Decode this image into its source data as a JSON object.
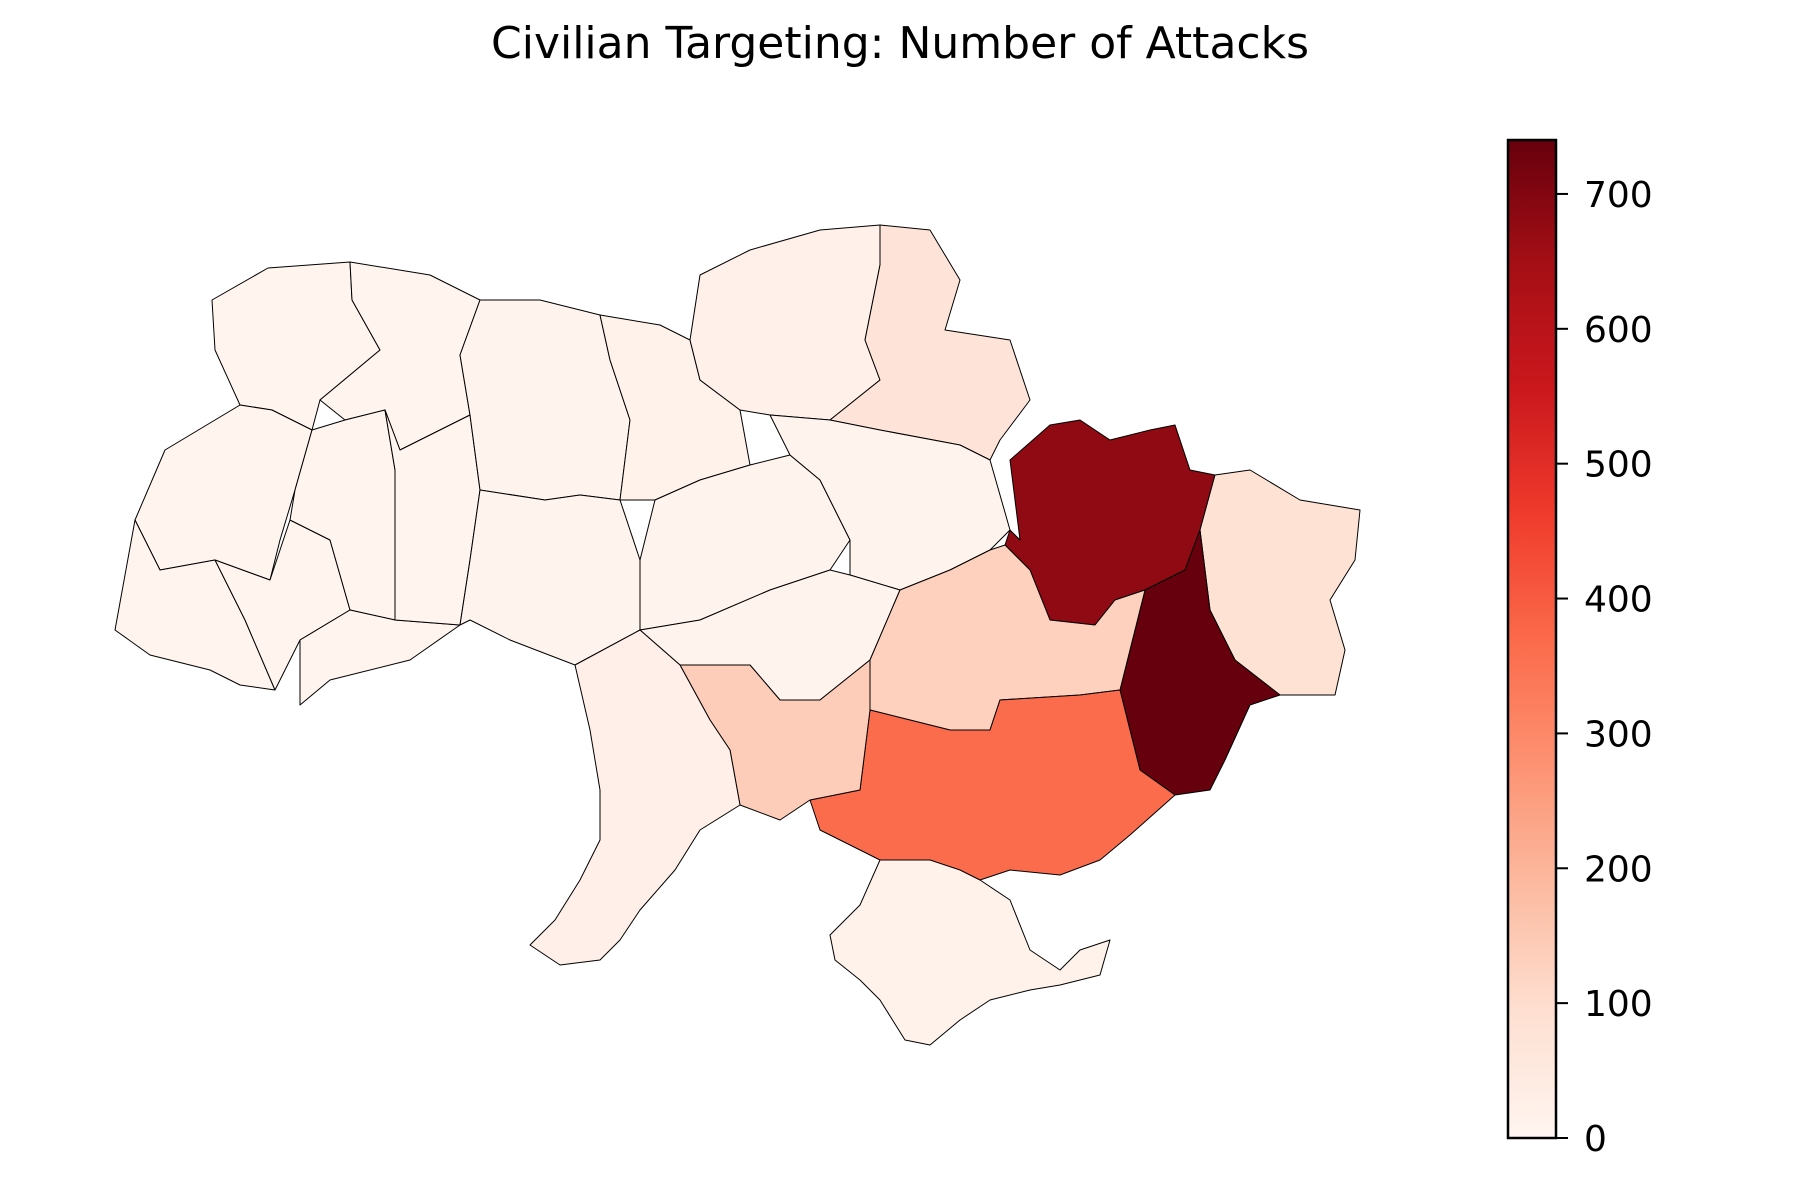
{
  "title": "Civilian Targeting: Number of Attacks",
  "colorbar": {
    "colormap": "Reds",
    "min": 0,
    "max": 740,
    "ticks": [
      0,
      100,
      200,
      300,
      400,
      500,
      600,
      700
    ],
    "color_stops": [
      "#fff5f0",
      "#fee0d2",
      "#fcbba1",
      "#fc9272",
      "#fb6a4a",
      "#ef3b2c",
      "#cb181d",
      "#a50f15",
      "#67000d"
    ]
  },
  "chart_data": {
    "type": "choropleth",
    "title": "Civilian Targeting: Number of Attacks",
    "value_range": [
      0,
      740
    ],
    "regions": [
      {
        "id": "volyn",
        "value": 6
      },
      {
        "id": "rivne",
        "value": 6
      },
      {
        "id": "zhytomyr",
        "value": 7
      },
      {
        "id": "kyiv",
        "value": 15
      },
      {
        "id": "chernihiv",
        "value": 20
      },
      {
        "id": "sumy",
        "value": 75
      },
      {
        "id": "kharkiv",
        "value": 680
      },
      {
        "id": "luhansk",
        "value": 85
      },
      {
        "id": "donetsk",
        "value": 740
      },
      {
        "id": "zaporizhzhia",
        "value": 365
      },
      {
        "id": "dnipropetrovsk",
        "value": 130
      },
      {
        "id": "kherson",
        "value": 30
      },
      {
        "id": "mykolaiv",
        "value": 140
      },
      {
        "id": "odesa",
        "value": 25
      },
      {
        "id": "kirovohrad",
        "value": 8
      },
      {
        "id": "cherkasy",
        "value": 9
      },
      {
        "id": "poltava",
        "value": 10
      },
      {
        "id": "vinnytsia",
        "value": 7
      },
      {
        "id": "khmelnytskyi",
        "value": 6
      },
      {
        "id": "ternopil",
        "value": 5
      },
      {
        "id": "lviv",
        "value": 6
      },
      {
        "id": "ivano-frankivsk",
        "value": 5
      },
      {
        "id": "chernivtsi",
        "value": 5
      },
      {
        "id": "zakarpattia",
        "value": 6
      },
      {
        "id": "crimea",
        "value": 15
      }
    ]
  }
}
